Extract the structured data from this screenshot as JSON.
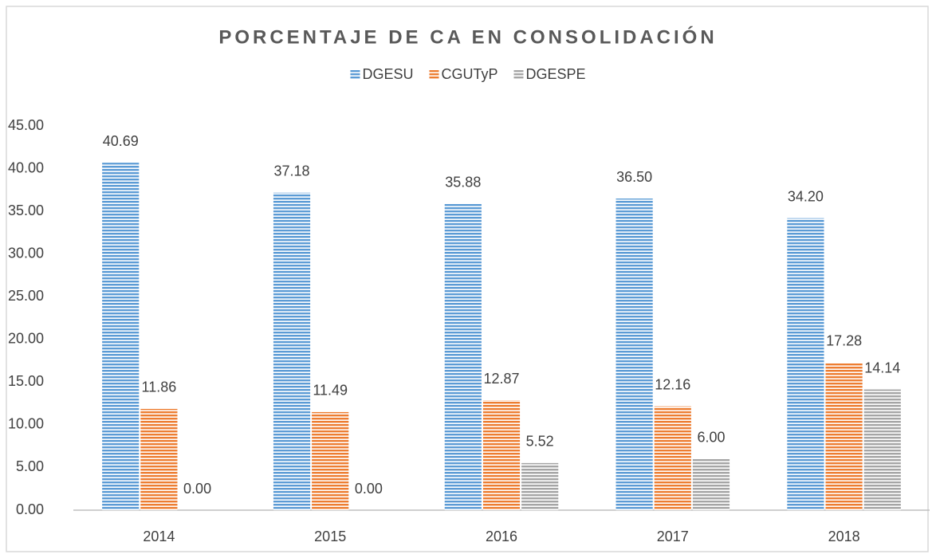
{
  "chart_data": {
    "type": "bar",
    "title": "PORCENTAJE DE CA EN CONSOLIDACIÓN",
    "categories": [
      "2014",
      "2015",
      "2016",
      "2017",
      "2018"
    ],
    "series": [
      {
        "name": "DGESU",
        "color": "#5b9bd5",
        "values": [
          40.69,
          37.18,
          35.88,
          36.5,
          34.2
        ],
        "value_labels": [
          "40.69",
          "37.18",
          "35.88",
          "36.50",
          "34.20"
        ]
      },
      {
        "name": "CGUTyP",
        "color": "#ed7d31",
        "values": [
          11.86,
          11.49,
          12.87,
          12.16,
          17.28
        ],
        "value_labels": [
          "11.86",
          "11.49",
          "12.87",
          "12.16",
          "17.28"
        ]
      },
      {
        "name": "DGESPE",
        "color": "#a5a5a5",
        "values": [
          0,
          0,
          5.52,
          6,
          14.14
        ],
        "value_labels": [
          "0.00",
          "0.00",
          "5.52",
          "6.00",
          "14.14"
        ]
      }
    ],
    "ylim": [
      0,
      45
    ],
    "yticks": [
      {
        "value": 0,
        "label": "0.00"
      },
      {
        "value": 5,
        "label": "5.00"
      },
      {
        "value": 10,
        "label": "10.00"
      },
      {
        "value": 15,
        "label": "15.00"
      },
      {
        "value": 20,
        "label": "20.00"
      },
      {
        "value": 25,
        "label": "25.00"
      },
      {
        "value": 30,
        "label": "30.00"
      },
      {
        "value": 35,
        "label": "35.00"
      },
      {
        "value": 40,
        "label": "40.00"
      },
      {
        "value": 45,
        "label": "45.00"
      }
    ],
    "grid": false,
    "legend": "top"
  }
}
